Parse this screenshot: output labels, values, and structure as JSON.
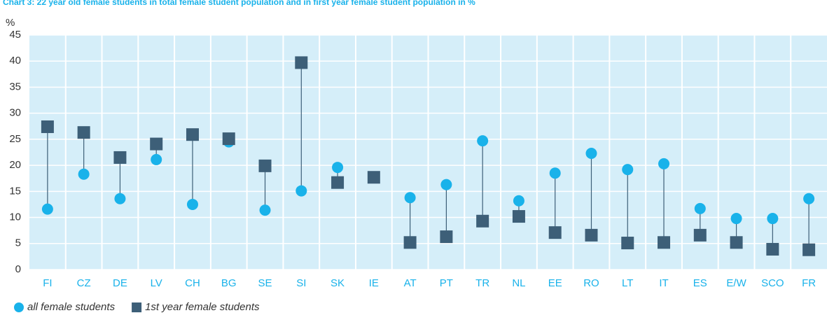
{
  "chart_data": {
    "type": "dumbbell",
    "title": "Chart 3: 22 year old female students in total female student population and in first year female student population in %",
    "ylabel": "%",
    "categories": [
      "FI",
      "CZ",
      "DE",
      "LV",
      "CH",
      "BG",
      "SE",
      "SI",
      "SK",
      "IE",
      "AT",
      "PT",
      "TR",
      "NL",
      "EE",
      "RO",
      "LT",
      "IT",
      "ES",
      "E/W",
      "SCO",
      "FR"
    ],
    "series": [
      {
        "name": "all female students",
        "color": "#19b2ea",
        "marker": "circle",
        "values": [
          11.6,
          18.3,
          13.6,
          21.1,
          12.5,
          24.5,
          11.4,
          15.1,
          19.6,
          17.7,
          13.8,
          16.3,
          24.7,
          13.2,
          18.5,
          22.3,
          19.2,
          20.3,
          11.7,
          9.8,
          9.8,
          13.6
        ]
      },
      {
        "name": "1st year female students",
        "color": "#3d5f78",
        "marker": "square",
        "values": [
          27.4,
          26.3,
          21.5,
          24.1,
          25.9,
          25.1,
          19.9,
          39.7,
          16.7,
          17.7,
          5.2,
          6.3,
          9.3,
          10.2,
          7.1,
          6.6,
          5.1,
          5.2,
          6.6,
          5.2,
          3.9,
          3.8
        ]
      }
    ],
    "ylim": [
      0,
      45
    ],
    "yticks": [
      0,
      5,
      10,
      15,
      20,
      25,
      30,
      35,
      40,
      45
    ],
    "grid": true,
    "legend": "bottom-left"
  }
}
